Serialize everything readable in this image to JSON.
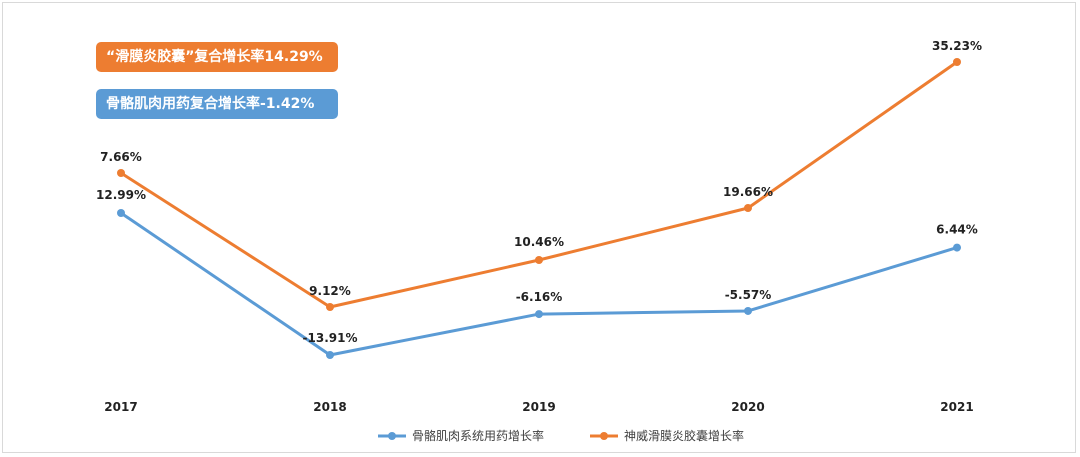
{
  "badges": {
    "orange": "“滑膜炎胶囊”复合增长率14.29%",
    "blue": "骨骼肌肉用药复合增长率-1.42%"
  },
  "colors": {
    "orange": "#ed7d31",
    "blue": "#5b9bd5",
    "badge_orange": "#ed7d31",
    "badge_blue": "#5b9bd5"
  },
  "chart_data": {
    "type": "line",
    "categories": [
      "2017",
      "2018",
      "2019",
      "2020",
      "2021"
    ],
    "series": [
      {
        "name": "骨骼肌肉系统用药增长率",
        "color": "#5b9bd5",
        "values": [
          12.99,
          -13.91,
          -6.16,
          -5.57,
          6.44
        ],
        "labels": [
          "12.99%",
          "-13.91%",
          "-6.16%",
          "-5.57%",
          "6.44%"
        ]
      },
      {
        "name": "神威滑膜炎胶囊增长率",
        "color": "#ed7d31",
        "values": [
          7.66,
          9.12,
          10.46,
          19.66,
          35.23
        ],
        "labels": [
          "7.66%",
          "9.12%",
          "10.46%",
          "19.66%",
          "35.23%"
        ]
      }
    ],
    "legend_position": "bottom",
    "grid": false
  }
}
